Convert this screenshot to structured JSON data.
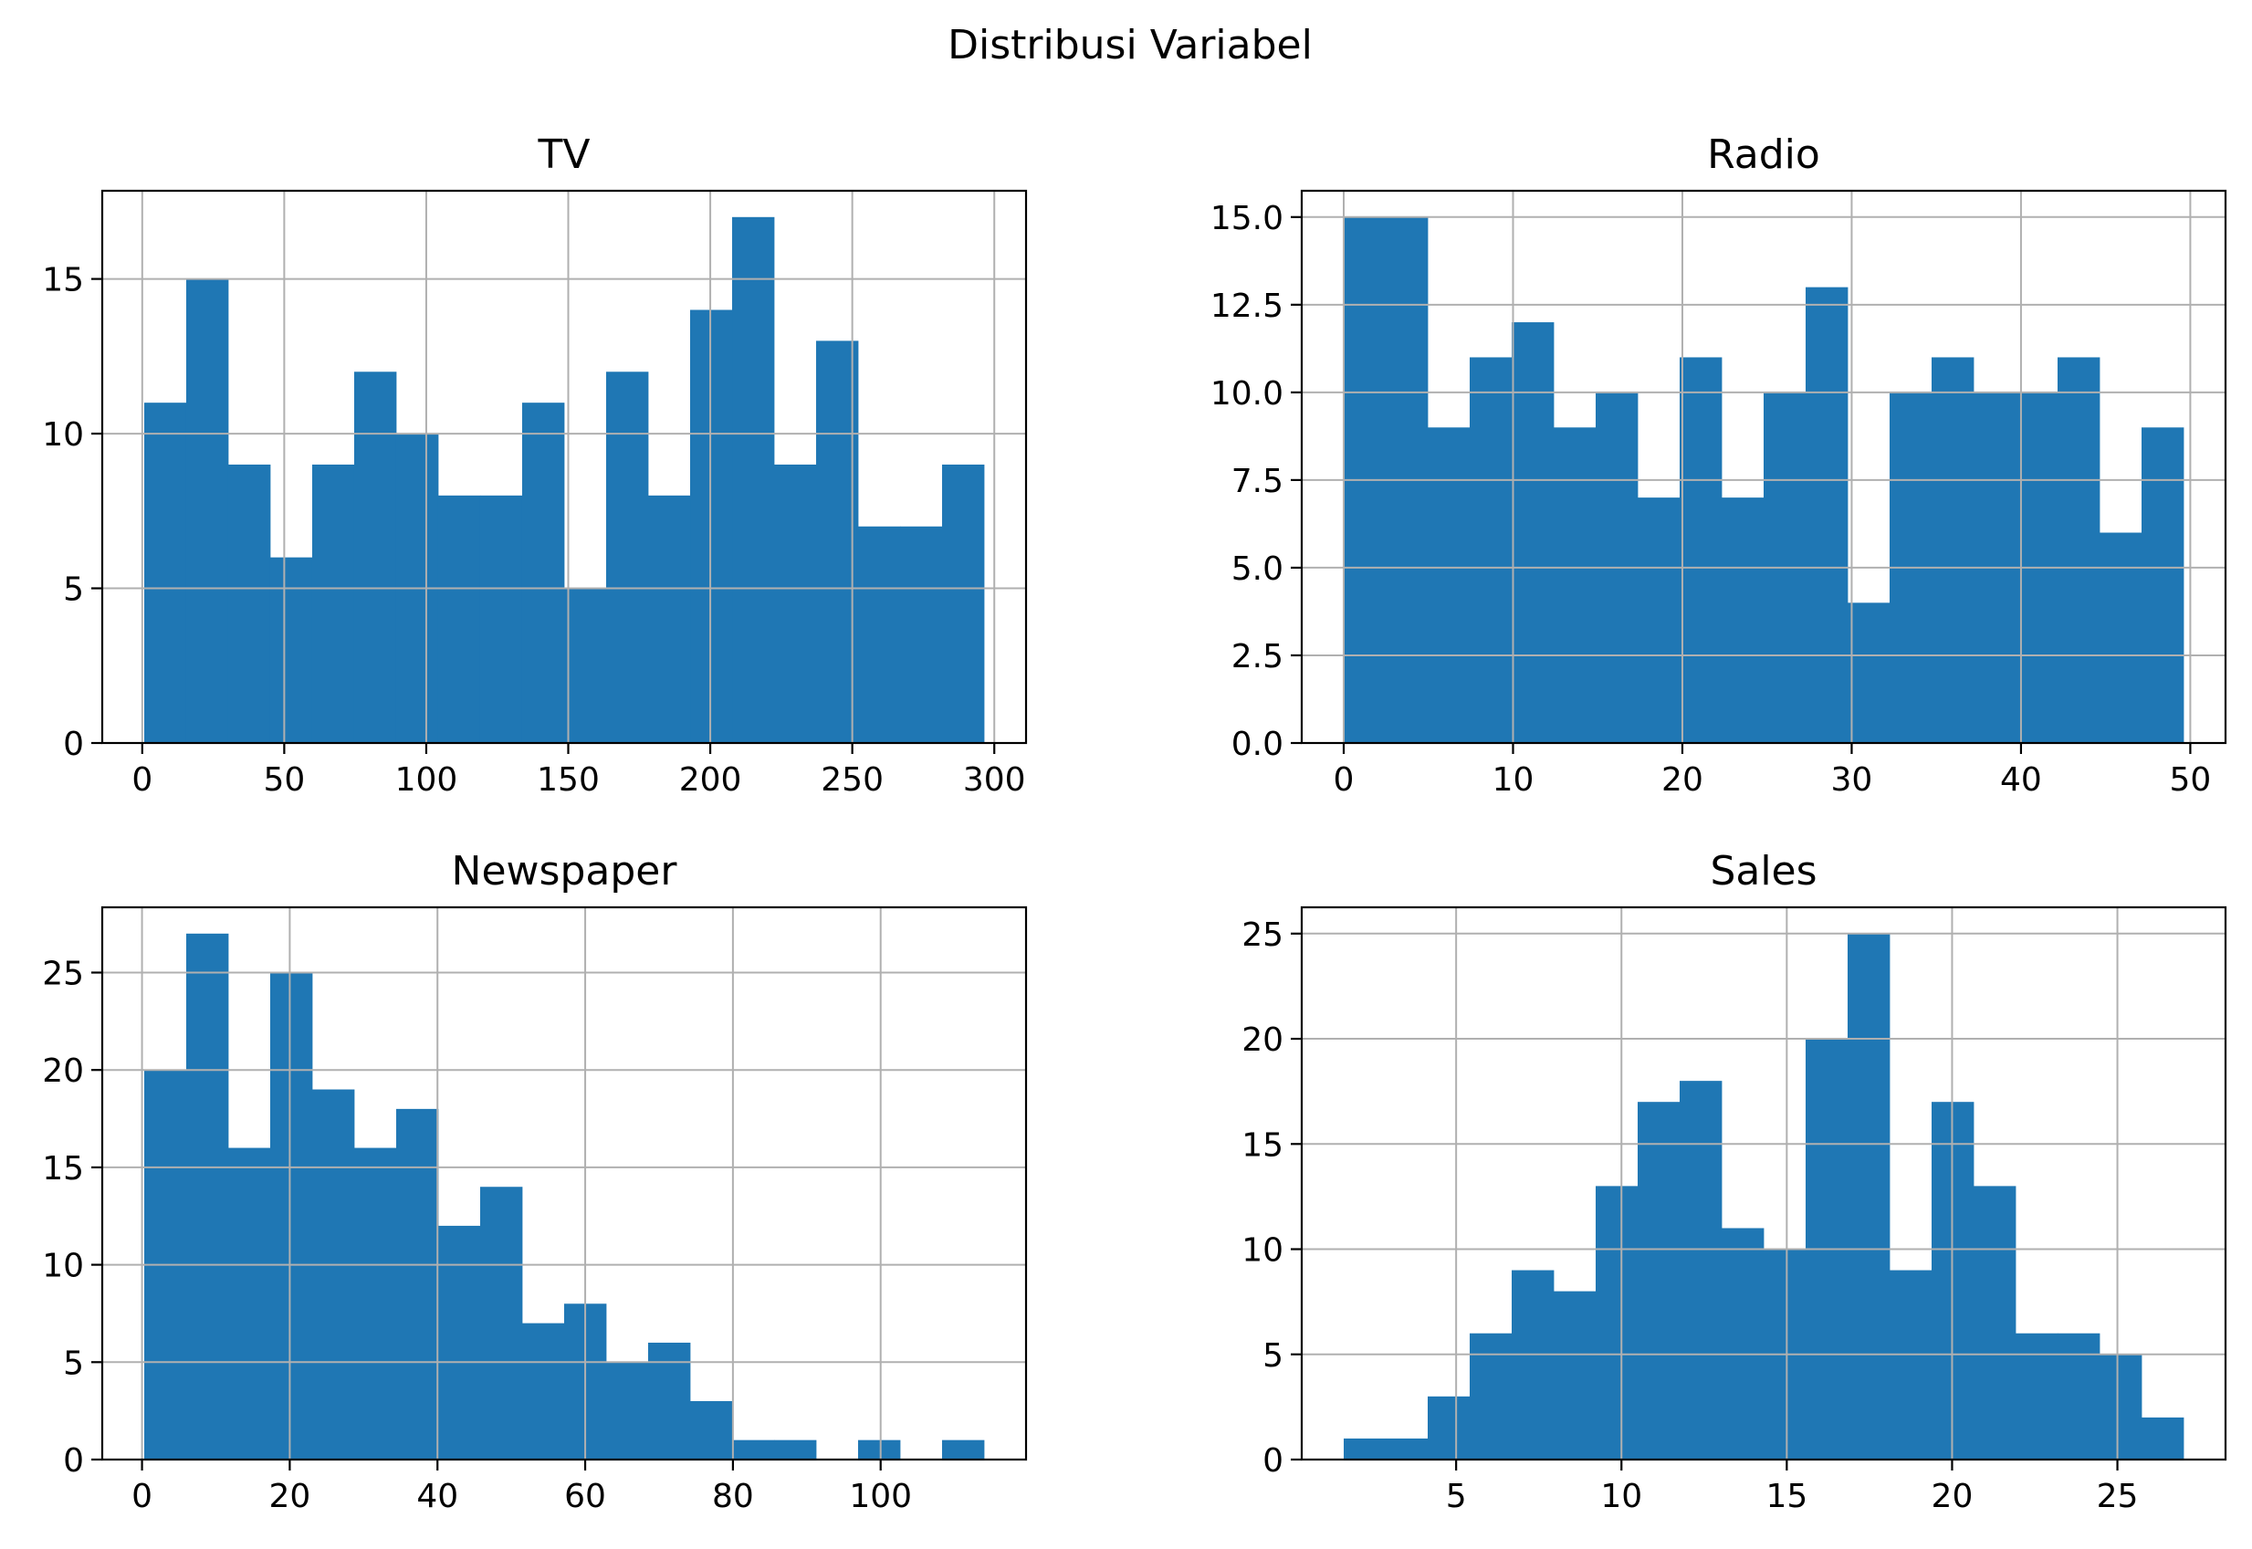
{
  "figure": {
    "title": "Distribusi Variabel",
    "bar_color": "#1f77b4",
    "grid_color": "#b0b0b0"
  },
  "chart_data": [
    {
      "type": "bar",
      "title": "TV",
      "bin_start": 0.7,
      "bin_end": 296.4,
      "counts": [
        11,
        15,
        9,
        6,
        9,
        12,
        10,
        8,
        8,
        11,
        5,
        12,
        8,
        14,
        17,
        9,
        13,
        7,
        7,
        9
      ],
      "xlim": [
        -14.08,
        311.18
      ],
      "ylim": [
        0,
        17.85
      ],
      "xticks": [
        0,
        50,
        100,
        150,
        200,
        250,
        300
      ],
      "xtick_labels": [
        "0",
        "50",
        "100",
        "150",
        "200",
        "250",
        "300"
      ],
      "yticks": [
        0,
        5,
        10,
        15
      ],
      "ytick_labels": [
        "0",
        "5",
        "10",
        "15"
      ],
      "grid": true
    },
    {
      "type": "bar",
      "title": "Radio",
      "bin_start": 0.0,
      "bin_end": 49.6,
      "counts": [
        15,
        15,
        9,
        11,
        12,
        9,
        10,
        7,
        11,
        7,
        10,
        13,
        4,
        10,
        11,
        10,
        10,
        11,
        6,
        9
      ],
      "xlim": [
        -2.48,
        52.08
      ],
      "ylim": [
        0,
        15.75
      ],
      "xticks": [
        0,
        10,
        20,
        30,
        40,
        50
      ],
      "xtick_labels": [
        "0",
        "10",
        "20",
        "30",
        "40",
        "50"
      ],
      "yticks": [
        0,
        2.5,
        5,
        7.5,
        10,
        12.5,
        15
      ],
      "ytick_labels": [
        "0.0",
        "2.5",
        "5.0",
        "7.5",
        "10.0",
        "12.5",
        "15.0"
      ],
      "grid": true
    },
    {
      "type": "bar",
      "title": "Newspaper",
      "bin_start": 0.3,
      "bin_end": 114.0,
      "counts": [
        20,
        27,
        16,
        25,
        19,
        16,
        18,
        12,
        14,
        7,
        8,
        5,
        6,
        3,
        1,
        1,
        0,
        1,
        0,
        1
      ],
      "xlim": [
        -5.385,
        119.685
      ],
      "ylim": [
        0,
        28.35
      ],
      "xticks": [
        0,
        20,
        40,
        60,
        80,
        100
      ],
      "xtick_labels": [
        "0",
        "20",
        "40",
        "60",
        "80",
        "100"
      ],
      "yticks": [
        0,
        5,
        10,
        15,
        20,
        25
      ],
      "ytick_labels": [
        "0",
        "5",
        "10",
        "15",
        "20",
        "25"
      ],
      "grid": true
    },
    {
      "type": "bar",
      "title": "Sales",
      "bin_start": 1.6,
      "bin_end": 27.0,
      "counts": [
        1,
        1,
        3,
        6,
        9,
        8,
        13,
        17,
        18,
        11,
        10,
        20,
        25,
        9,
        17,
        13,
        6,
        6,
        5,
        2
      ],
      "xlim": [
        0.33,
        28.27
      ],
      "ylim": [
        0,
        26.25
      ],
      "xticks": [
        5,
        10,
        15,
        20,
        25
      ],
      "xtick_labels": [
        "5",
        "10",
        "15",
        "20",
        "25"
      ],
      "yticks": [
        0,
        5,
        10,
        15,
        20,
        25
      ],
      "ytick_labels": [
        "0",
        "5",
        "10",
        "15",
        "20",
        "25"
      ],
      "grid": true
    }
  ]
}
